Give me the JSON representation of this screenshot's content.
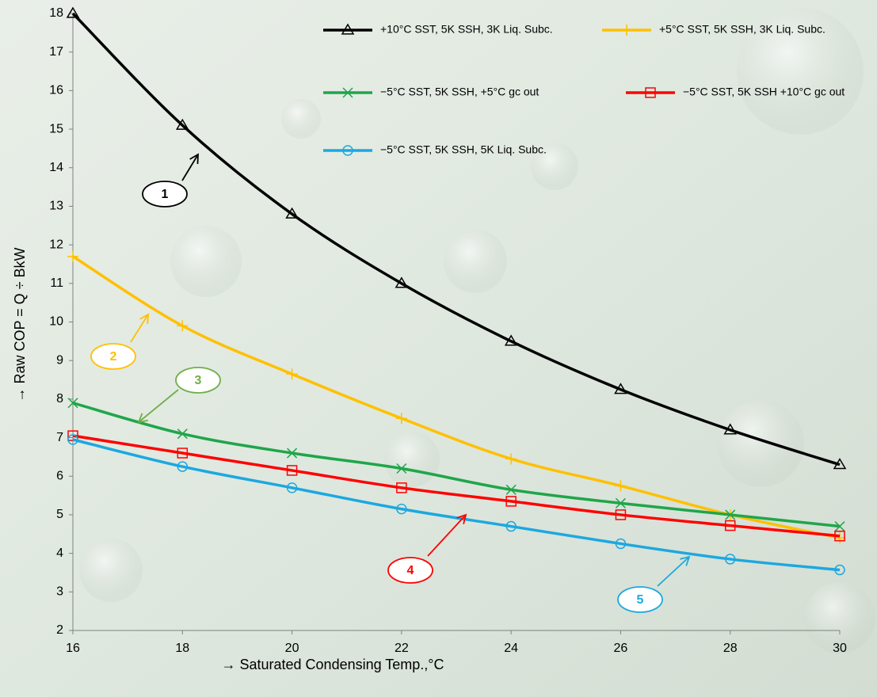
{
  "chart_data": {
    "type": "line",
    "x_label": "→ Saturated Condensing Temp.,°C",
    "y_label": "→ Raw COP = Q ÷ BkW",
    "x": [
      16,
      18,
      20,
      22,
      24,
      26,
      28,
      30
    ],
    "xlim": [
      16,
      30
    ],
    "xticks": [
      16,
      18,
      20,
      22,
      24,
      26,
      28,
      30
    ],
    "ylim": [
      2,
      18
    ],
    "yticks": [
      2,
      3,
      4,
      5,
      6,
      7,
      8,
      9,
      10,
      11,
      12,
      13,
      14,
      15,
      16,
      17,
      18
    ],
    "grid": false,
    "smooth": true,
    "series": [
      {
        "name": "+10°C SST, 5K SSH, 3K Liq. Subc.",
        "color": "#000000",
        "marker": "triangle",
        "values": [
          18.0,
          15.1,
          12.8,
          11.0,
          9.5,
          8.25,
          7.2,
          6.3
        ]
      },
      {
        "name": "+5°C SST, 5K SSH, 3K Liq. Subc.",
        "color": "#ffc000",
        "marker": "plus",
        "values": [
          11.7,
          9.9,
          8.65,
          7.5,
          6.45,
          5.75,
          5.0,
          4.4
        ]
      },
      {
        "name": "−5°C SST, 5K SSH, +5°C gc out",
        "color": "#1fa64a",
        "marker": "cross",
        "values": [
          7.9,
          7.1,
          6.6,
          6.2,
          5.65,
          5.3,
          5.0,
          4.7
        ]
      },
      {
        "name": "−5°C SST, 5K SSH +10°C gc out",
        "color": "#ff0000",
        "marker": "square",
        "values": [
          7.05,
          6.6,
          6.15,
          5.7,
          5.35,
          5.0,
          4.72,
          4.45
        ]
      },
      {
        "name": "−5°C SST, 5K SSH, 5K Liq. Subc.",
        "color": "#1ca8e0",
        "marker": "circle",
        "values": [
          6.95,
          6.25,
          5.7,
          5.15,
          4.7,
          4.25,
          3.85,
          3.57
        ]
      }
    ],
    "annotations": [
      {
        "text": "1",
        "color": "#000000"
      },
      {
        "text": "2",
        "color": "#ffc000"
      },
      {
        "text": "3",
        "color": "#70ad47"
      },
      {
        "text": "4",
        "color": "#ff0000"
      },
      {
        "text": "5",
        "color": "#1ca8e0"
      }
    ]
  }
}
